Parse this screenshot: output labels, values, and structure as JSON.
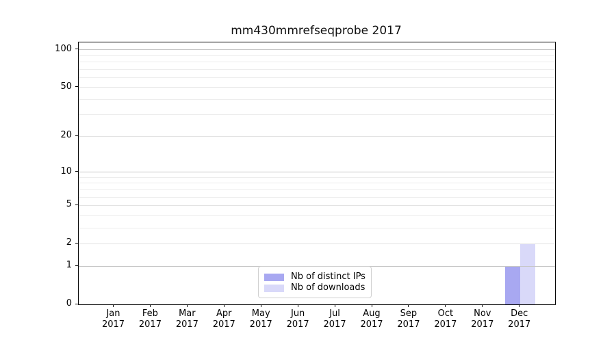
{
  "chart_data": {
    "type": "bar",
    "title": "mm430mmrefseqprobe 2017",
    "x_categories": [
      {
        "label": "Jan",
        "year": "2017"
      },
      {
        "label": "Feb",
        "year": "2017"
      },
      {
        "label": "Mar",
        "year": "2017"
      },
      {
        "label": "Apr",
        "year": "2017"
      },
      {
        "label": "May",
        "year": "2017"
      },
      {
        "label": "Jun",
        "year": "2017"
      },
      {
        "label": "Jul",
        "year": "2017"
      },
      {
        "label": "Aug",
        "year": "2017"
      },
      {
        "label": "Sep",
        "year": "2017"
      },
      {
        "label": "Oct",
        "year": "2017"
      },
      {
        "label": "Nov",
        "year": "2017"
      },
      {
        "label": "Dec",
        "year": "2017"
      }
    ],
    "yticks": [
      0,
      1,
      2,
      5,
      10,
      20,
      50,
      100
    ],
    "ylim": [
      0,
      114.3
    ],
    "scale": "log10(1+v)",
    "grid": {
      "major": [
        1,
        10,
        100
      ],
      "labeled_minor": [
        2,
        5,
        20,
        50
      ],
      "minor": [
        3,
        4,
        6,
        7,
        8,
        9,
        30,
        40,
        60,
        70,
        80,
        90
      ]
    },
    "series": [
      {
        "name": "Nb of distinct IPs",
        "color": "#a8a8f1",
        "values": [
          0,
          0,
          0,
          0,
          0,
          0,
          0,
          0,
          0,
          0,
          0,
          1
        ]
      },
      {
        "name": "Nb of downloads",
        "color": "#d9d9f9",
        "values": [
          0,
          0,
          0,
          0,
          0,
          0,
          0,
          0,
          0,
          0,
          0,
          2
        ]
      }
    ],
    "legend": {
      "position": "bottom-center"
    },
    "colors": {
      "grid_major": "#c6c6c6",
      "grid_labeled_minor": "#e3e3e3",
      "grid_minor": "#ededed",
      "axis": "#000000",
      "background": "#ffffff"
    }
  }
}
